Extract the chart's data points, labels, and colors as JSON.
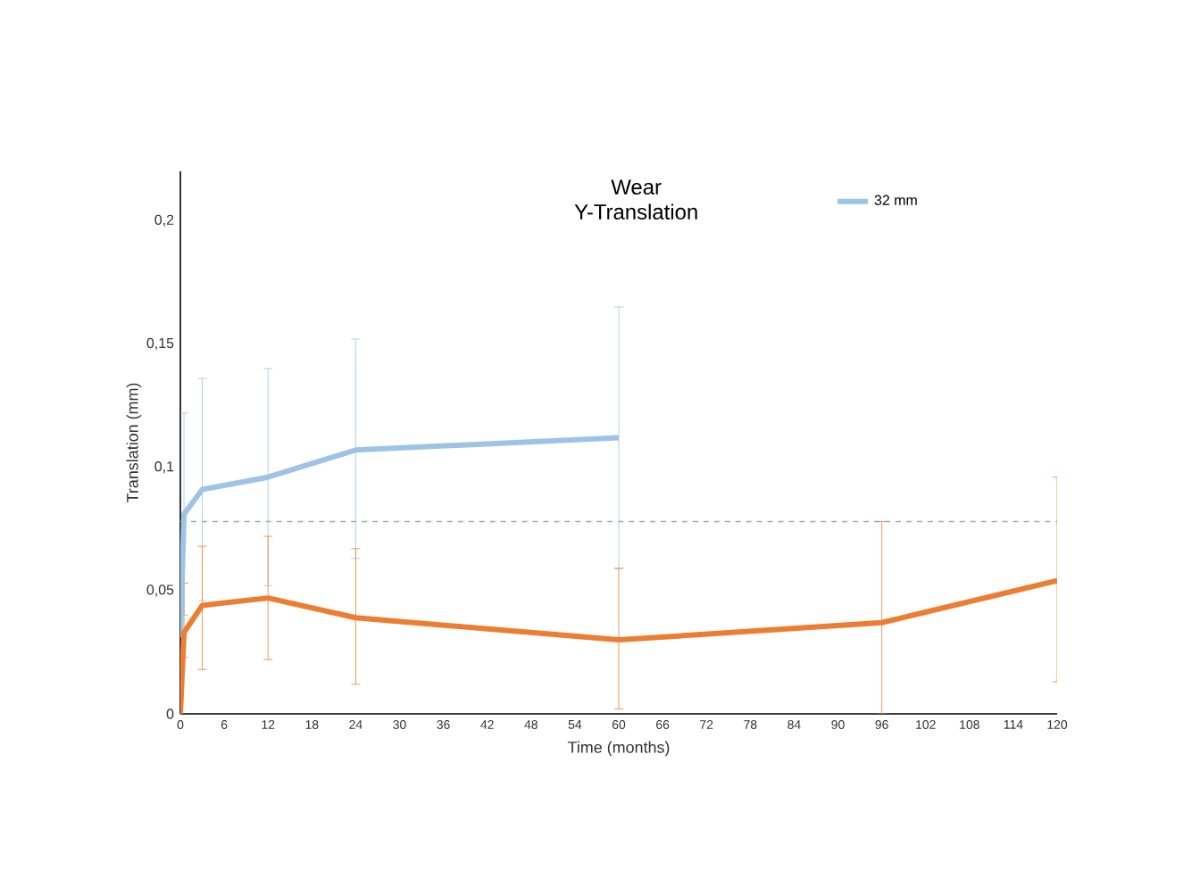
{
  "chart_data": {
    "type": "line",
    "title": "Wear",
    "subtitle": "Y-Translation",
    "xlabel": "Time (months)",
    "ylabel": "Translation (mm)",
    "xlim": [
      0,
      120
    ],
    "xticks": [
      0,
      6,
      12,
      18,
      24,
      30,
      36,
      42,
      48,
      54,
      60,
      66,
      72,
      78,
      84,
      90,
      96,
      102,
      108,
      114,
      120
    ],
    "ylim": [
      0,
      0.22
    ],
    "yticks": [
      0,
      {
        "value": 0.05,
        "label": "0,05"
      },
      {
        "value": 0.1,
        "label": "0,1"
      },
      {
        "value": 0.15,
        "label": "0,15"
      },
      {
        "value": 0.2,
        "label": "0,2"
      }
    ],
    "series": [
      {
        "name": "32 mm",
        "color": "#9dc3e6",
        "x": [
          0,
          0.5,
          3,
          12,
          24,
          60
        ],
        "values": [
          0.031,
          0.081,
          0.091,
          0.096,
          0.107,
          0.112
        ],
        "errors": [
          null,
          0.041,
          [
            0.046,
            0.136
          ],
          [
            0.052,
            0.14
          ],
          [
            0.063,
            0.152
          ],
          [
            0.059,
            0.165
          ]
        ]
      },
      {
        "color": "#ed7d31",
        "x": [
          0,
          0.5,
          3,
          12,
          24,
          60,
          96,
          120
        ],
        "values": [
          0,
          0.033,
          0.044,
          0.047,
          0.039,
          0.03,
          0.037,
          0.054
        ],
        "errors": [
          null,
          [
            0.023,
            0.053
          ],
          [
            0.018,
            0.068
          ],
          [
            0.022,
            0.072
          ],
          [
            0.012,
            0.067
          ],
          [
            0.002,
            0.059
          ],
          [
            0,
            0.078
          ],
          [
            0.013,
            0.096
          ]
        ]
      }
    ],
    "ref_lines": [
      {
        "axis": "y",
        "value": 0.078,
        "color": "#a6a6a6",
        "line_style": "dashed"
      }
    ],
    "grid": false,
    "legend": "top right",
    "marker": "none",
    "line_style": "solid"
  }
}
